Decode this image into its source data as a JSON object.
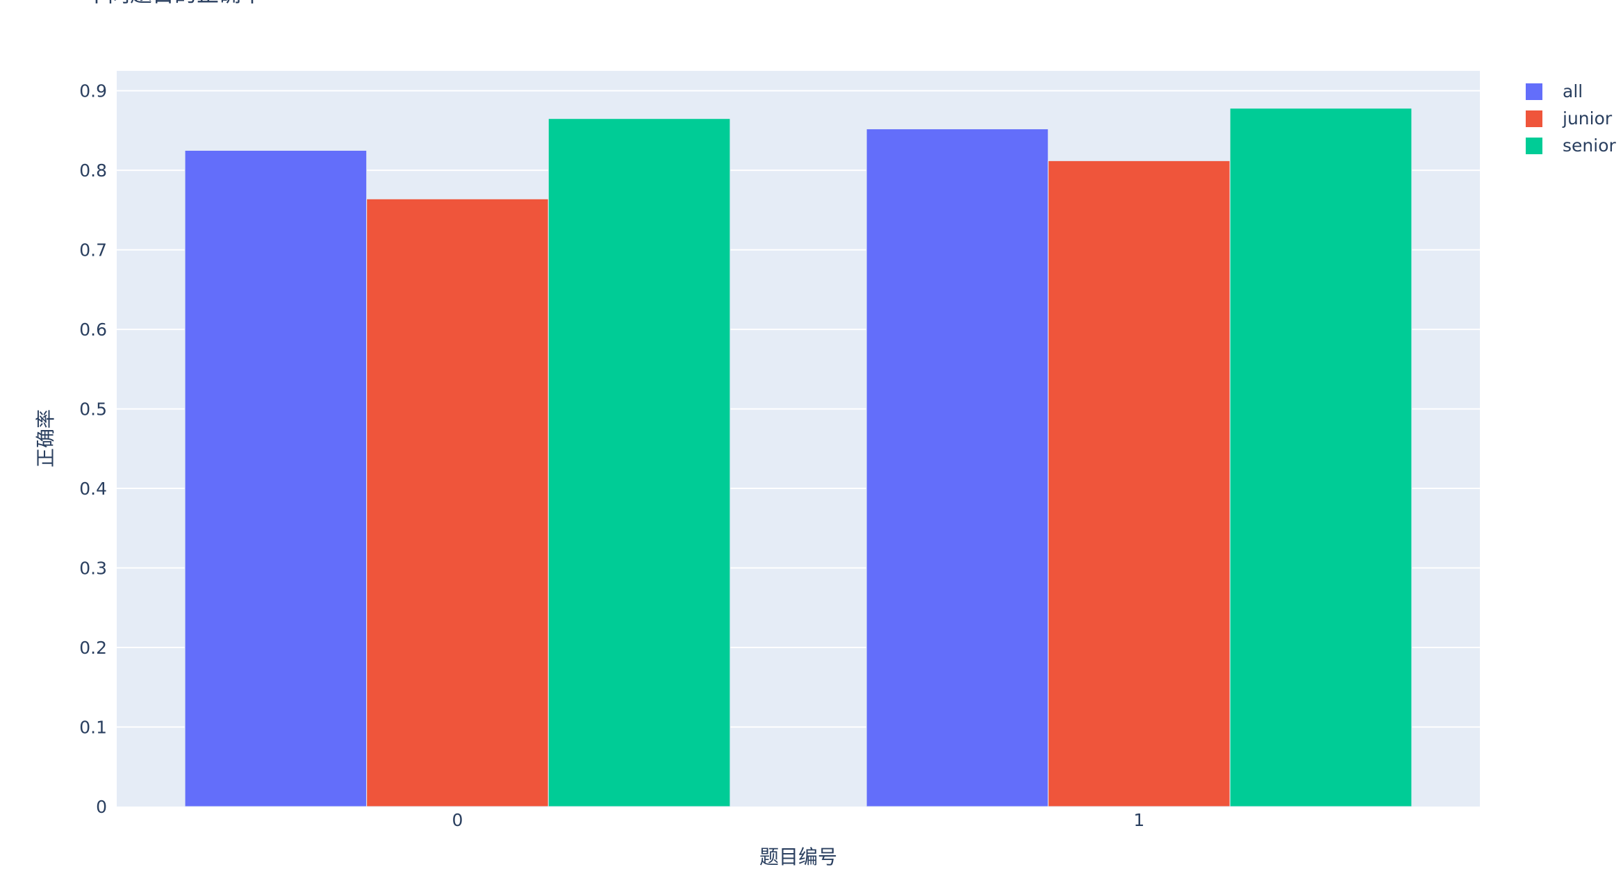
{
  "chart_data": {
    "type": "bar",
    "title": "不同题目的正确率",
    "xlabel": "题目编号",
    "ylabel": "正确率",
    "categories": [
      "0",
      "1"
    ],
    "ylim": [
      0,
      0.925
    ],
    "yticks": [
      0,
      0.1,
      0.2,
      0.3,
      0.4,
      0.5,
      0.6,
      0.7,
      0.8,
      0.9
    ],
    "ytick_labels": [
      "0",
      "0.1",
      "0.2",
      "0.3",
      "0.4",
      "0.5",
      "0.6",
      "0.7",
      "0.8",
      "0.9"
    ],
    "grid": true,
    "legend": "right",
    "series": [
      {
        "name": "all",
        "color": "#636efa",
        "values": [
          0.825,
          0.852
        ]
      },
      {
        "name": "junior",
        "color": "#ef553b",
        "values": [
          0.764,
          0.812
        ]
      },
      {
        "name": "senior",
        "color": "#00cc96",
        "values": [
          0.865,
          0.878
        ]
      }
    ]
  }
}
